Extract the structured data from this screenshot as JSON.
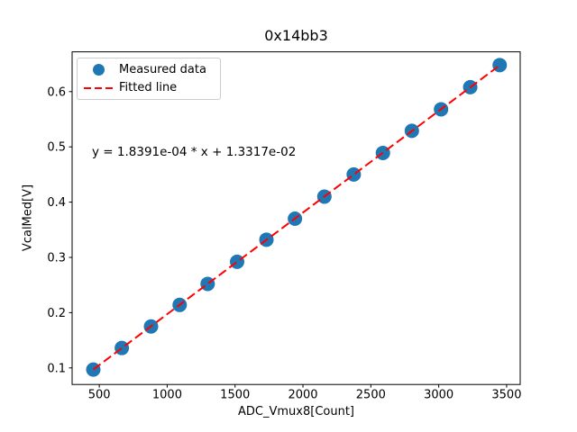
{
  "chart_data": {
    "type": "scatter",
    "title": "0x14bb3",
    "xlabel": "ADC_Vmux8[Count]",
    "ylabel": "VcalMed[V]",
    "xlim": [
      300,
      3600
    ],
    "ylim": [
      0.07,
      0.672
    ],
    "x_ticks": [
      500,
      1000,
      1500,
      2000,
      2500,
      3000,
      3500
    ],
    "y_ticks": [
      0.1,
      0.2,
      0.3,
      0.4,
      0.5,
      0.6
    ],
    "grid": false,
    "legend_position": "upper left",
    "series": [
      {
        "name": "Measured data",
        "type": "scatter",
        "color": "#1f77b4",
        "x": [
          456,
          666,
          881,
          1092,
          1298,
          1515,
          1731,
          1941,
          2158,
          2374,
          2589,
          2802,
          3017,
          3232,
          3449
        ],
        "y": [
          0.097,
          0.136,
          0.175,
          0.214,
          0.252,
          0.292,
          0.332,
          0.37,
          0.41,
          0.45,
          0.489,
          0.529,
          0.568,
          0.608,
          0.648
        ]
      },
      {
        "name": "Fitted line",
        "type": "line",
        "style": "dashed",
        "color": "#ff0000",
        "slope": 0.00018391,
        "intercept": 0.013317,
        "x_range": [
          456,
          3449
        ]
      }
    ],
    "annotation": {
      "text": "y = 1.8391e-04 * x + 1.3317e-02"
    }
  }
}
